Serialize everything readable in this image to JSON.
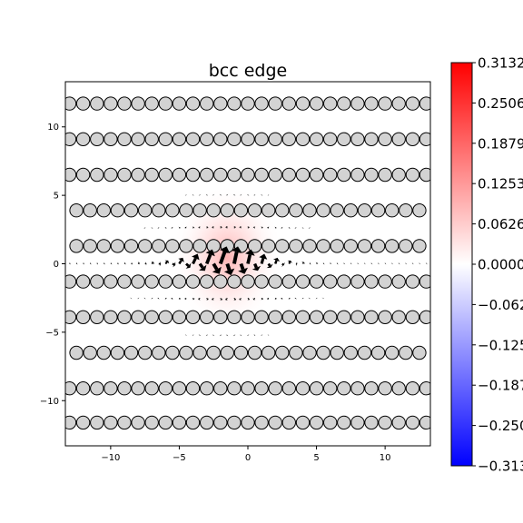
{
  "chart_data": {
    "type": "scatter",
    "title": "bcc edge",
    "xlabel": "",
    "ylabel": "",
    "xlim": [
      -13.3,
      13.3
    ],
    "ylim": [
      -13.3,
      13.3
    ],
    "grid": false,
    "x_ticks": [
      -10,
      -5,
      0,
      5,
      10
    ],
    "y_ticks": [
      10,
      5,
      0,
      -5,
      -10
    ],
    "x_tick_labels": [
      "−10",
      "−5",
      "0",
      "5",
      "10"
    ],
    "y_tick_labels": [
      "10",
      "5",
      "0",
      "−5",
      "−10"
    ],
    "atoms": {
      "color": "#d3d3d3",
      "edge_color": "#000000",
      "rows": [
        {
          "y": 11.7,
          "x_start": -13.0,
          "x_end": 13.3,
          "spacing": 1.0
        },
        {
          "y": 9.1,
          "x_start": -13.0,
          "x_end": 13.3,
          "spacing": 1.0
        },
        {
          "y": 6.5,
          "x_start": -13.0,
          "x_end": 13.3,
          "spacing": 1.0
        },
        {
          "y": 3.9,
          "x_start": -12.5,
          "x_end": 13.3,
          "spacing": 1.0
        },
        {
          "y": 1.3,
          "x_start": -12.5,
          "x_end": 13.3,
          "spacing": 1.0
        },
        {
          "y": -1.3,
          "x_start": -13.0,
          "x_end": 13.3,
          "spacing": 1.0
        },
        {
          "y": -3.9,
          "x_start": -13.0,
          "x_end": 13.3,
          "spacing": 1.0
        },
        {
          "y": -6.5,
          "x_start": -12.5,
          "x_end": 13.3,
          "spacing": 1.0
        },
        {
          "y": -9.1,
          "x_start": -13.0,
          "x_end": 13.3,
          "spacing": 1.0
        },
        {
          "y": -11.6,
          "x_start": -13.0,
          "x_end": 13.3,
          "spacing": 1.0
        }
      ]
    },
    "field": {
      "description_values": "strain-like scalar shown as bwr color map, peak near dislocation core",
      "center_x": -1.5,
      "center_y": 0.5,
      "peak_value": 0.0626
    },
    "arrows": {
      "color": "#000000",
      "row_y": [
        0.0,
        -2.6,
        2.6,
        -5.2,
        5.2
      ],
      "core_x": -1.5
    },
    "colorbar": {
      "cmap": "bwr",
      "vmin": -0.3132,
      "vmax": 0.3132,
      "tick_labels": [
        "0.3132",
        "0.2506",
        "0.1879",
        "0.1253",
        "0.0626",
        "0.0000",
        "−0.062",
        "−0.125",
        "−0.187",
        "−0.250",
        "−0.313"
      ]
    }
  }
}
